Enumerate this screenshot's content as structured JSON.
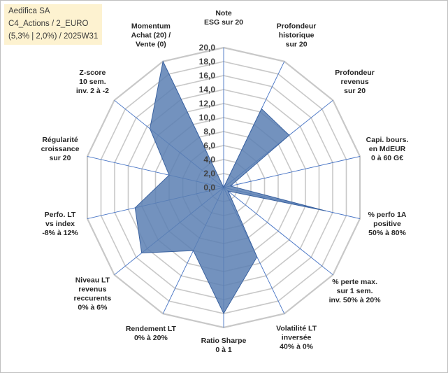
{
  "info": {
    "lines": [
      "Aedifica SA",
      "C4_Actions / 2_EURO",
      "(5,3% | 2,0%) / 2025W31"
    ]
  },
  "colors": {
    "fill": "#5b7fb3",
    "stroke": "#3a62a0",
    "grid": "#c8c8c8",
    "spoke": "#4472c4",
    "info_bg": "#fdf2d0"
  },
  "chart_data": {
    "type": "radar",
    "range": [
      0,
      20
    ],
    "grid": true,
    "ticks": [
      "0,0",
      "2,0",
      "4,0",
      "6,0",
      "8,0",
      "10,0",
      "12,0",
      "14,0",
      "16,0",
      "18,0",
      "20,0"
    ],
    "categories": [
      [
        "Note",
        "ESG sur 20"
      ],
      [
        "Profondeur",
        "historique",
        "sur 20"
      ],
      [
        "Profondeur",
        "revenus",
        "sur 20"
      ],
      [
        "Capi. bours.",
        "en MdEUR",
        "0 à 60 G€"
      ],
      [
        "% perfo 1A",
        "positive",
        "50% à 80%"
      ],
      [
        "% perte max.",
        "sur 1 sem.",
        "inv. 50% à 20%"
      ],
      [
        "Volatilité LT",
        "inversée",
        "40% à 0%"
      ],
      [
        "Ratio Sharpe",
        "0 à 1"
      ],
      [
        "Rendement LT",
        "0% à 20%"
      ],
      [
        "Niveau LT",
        "revenus",
        "reccurents",
        "0% à 6%"
      ],
      [
        "Perfo. LT",
        "vs index",
        "-8% à 12%"
      ],
      [
        "Régularité",
        "croissance",
        "sur 20"
      ],
      [
        "Z-score",
        "10 sem.",
        "inv. 2 à -2"
      ],
      [
        "Momentum",
        "Achat (20) /",
        "Vente (0)"
      ]
    ],
    "values": [
      0,
      12.5,
      12,
      1,
      15,
      0.8,
      11,
      18,
      10,
      15,
      13,
      8,
      13.5,
      20
    ]
  }
}
